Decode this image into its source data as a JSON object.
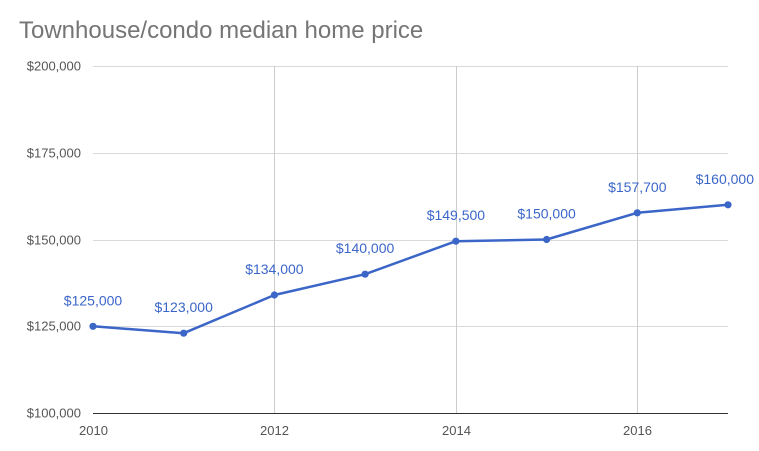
{
  "chart_data": {
    "type": "line",
    "title": "Townhouse/condo median home price",
    "xlabel": "",
    "ylabel": "",
    "x": [
      2010,
      2011,
      2012,
      2013,
      2014,
      2015,
      2016,
      2017
    ],
    "values": [
      125000,
      123000,
      134000,
      140000,
      149500,
      150000,
      157700,
      160000
    ],
    "data_labels": [
      "$125,000",
      "$123,000",
      "$134,000",
      "$140,000",
      "$149,500",
      "$150,000",
      "$157,700",
      "$160,000"
    ],
    "xlim": [
      2010,
      2017
    ],
    "ylim": [
      100000,
      200000
    ],
    "x_ticks": [
      "2010",
      "2012",
      "2014",
      "2016"
    ],
    "y_ticks": [
      "$100,000",
      "$125,000",
      "$150,000",
      "$175,000",
      "$200,000"
    ],
    "grid": true,
    "legend": "none",
    "line_color": "#3b66c8"
  }
}
